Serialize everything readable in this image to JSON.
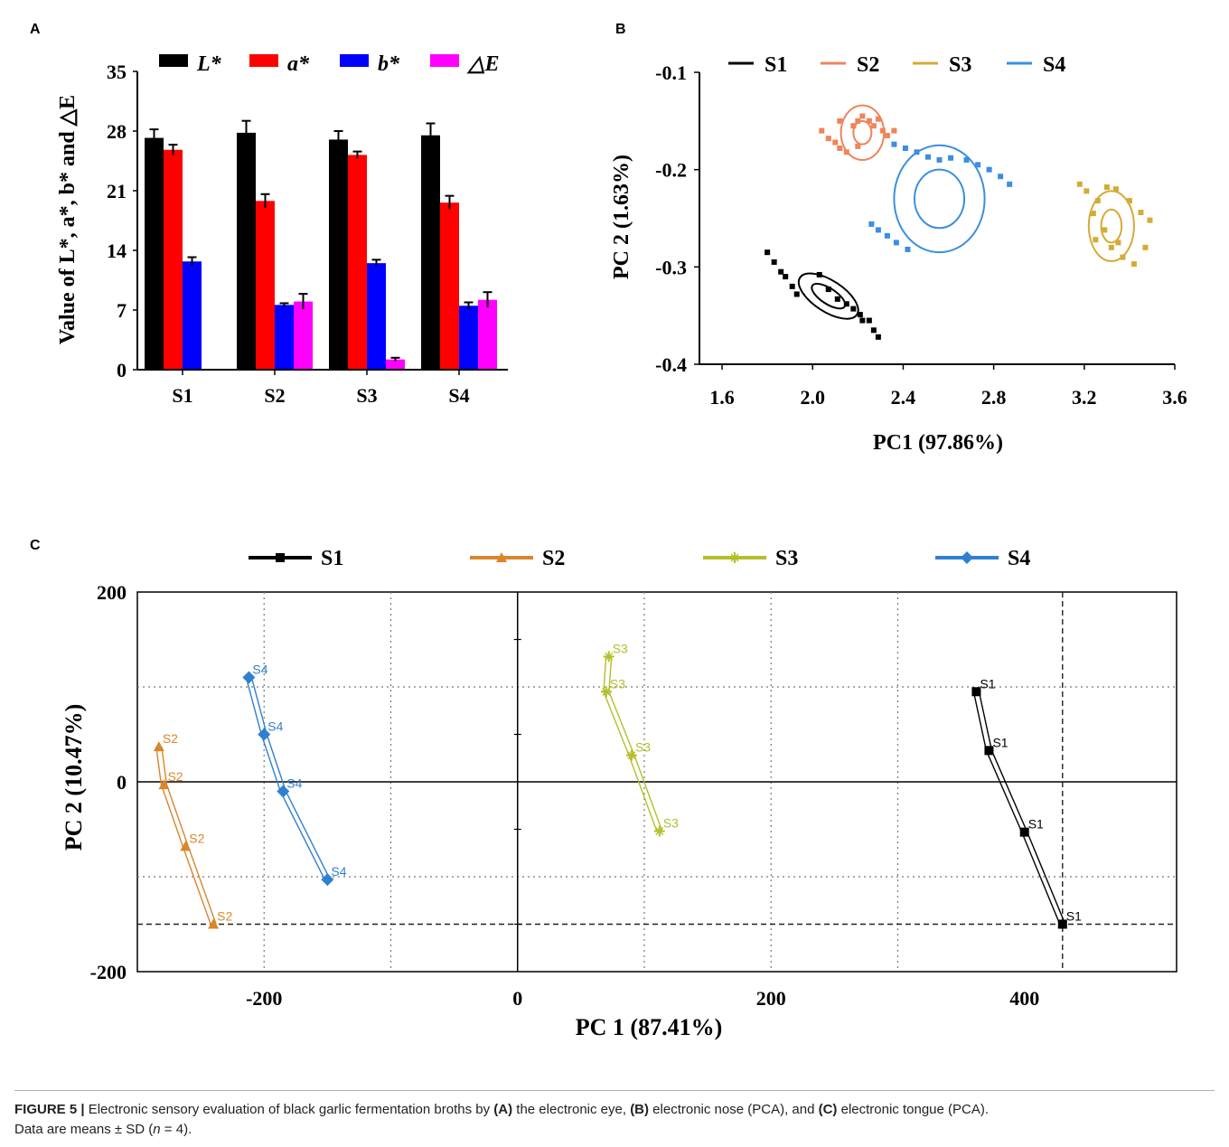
{
  "panel_labels": {
    "a": "A",
    "b": "B",
    "c": "C"
  },
  "caption": {
    "figure": "FIGURE 5 |",
    "t1": " Electronic sensory evaluation of black garlic fermentation broths by ",
    "a": "(A)",
    "t2": " the electronic eye, ",
    "b": "(B)",
    "t3": " electronic nose (PCA), and ",
    "c": "(C)",
    "t4": " electronic tongue (PCA).",
    "t5": "Data are means ± SD (",
    "n": "n",
    "t6": " = 4)."
  },
  "colors": {
    "L": "#000000",
    "a": "#ff0000",
    "b": "#0000ff",
    "dE": "#ff00ff",
    "noseS1": "#000000",
    "noseS2": "#f0845a",
    "noseS3": "#d4ab37",
    "noseS4": "#3b8ee0",
    "tongueS1": "#000000",
    "tongueS2": "#d9862c",
    "tongueS3": "#b4bf2a",
    "tongueS4": "#2f80d0"
  },
  "chart_data": [
    {
      "type": "bar",
      "panel": "A",
      "categories": [
        "S1",
        "S2",
        "S3",
        "S4"
      ],
      "series": [
        {
          "name": "L*",
          "values": [
            27.2,
            27.8,
            27.0,
            27.5
          ],
          "errors": [
            1.0,
            1.4,
            1.0,
            1.4
          ]
        },
        {
          "name": "a*",
          "values": [
            25.8,
            19.8,
            25.2,
            19.6
          ],
          "errors": [
            0.6,
            0.8,
            0.4,
            0.8
          ]
        },
        {
          "name": "b*",
          "values": [
            12.7,
            7.6,
            12.5,
            7.5
          ],
          "errors": [
            0.5,
            0.2,
            0.4,
            0.4
          ]
        },
        {
          "name": "△E",
          "values": [
            0,
            8.0,
            1.2,
            8.2
          ],
          "errors": [
            0,
            0.9,
            0.2,
            0.9
          ]
        }
      ],
      "yticks": [
        "0",
        "7",
        "14",
        "21",
        "28",
        "35"
      ],
      "ylim": [
        0,
        35
      ],
      "ylabel": "Value of L*, a*, b* and △E",
      "legend": "top"
    },
    {
      "type": "scatter",
      "panel": "B",
      "xlabel": "PC1 (97.86%)",
      "ylabel": "PC 2 (1.63%)",
      "xlim": [
        1.5,
        3.6
      ],
      "ylim": [
        -0.4,
        -0.1
      ],
      "xticks": [
        "1.6",
        "2.0",
        "2.4",
        "2.8",
        "3.2",
        "3.6"
      ],
      "yticks": [
        "-0.1",
        "-0.2",
        "-0.3",
        "-0.4"
      ],
      "legend": "top",
      "series": [
        {
          "name": "S1",
          "x": [
            1.8,
            1.83,
            1.86,
            1.88,
            1.91,
            1.93,
            2.03,
            2.07,
            2.11,
            2.15,
            2.18,
            2.21,
            2.22,
            2.25,
            2.27,
            2.29
          ],
          "y": [
            -0.285,
            -0.295,
            -0.305,
            -0.31,
            -0.32,
            -0.328,
            -0.308,
            -0.323,
            -0.333,
            -0.338,
            -0.343,
            -0.349,
            -0.355,
            -0.355,
            -0.365,
            -0.372
          ],
          "ellipses": [
            {
              "cx": 2.07,
              "cy": -0.33,
              "rx": 0.3,
              "ry": 0.016,
              "angle": 33
            },
            {
              "cx": 2.07,
              "cy": -0.33,
              "rx": 0.17,
              "ry": 0.008,
              "angle": 33
            }
          ]
        },
        {
          "name": "S2",
          "x": [
            2.04,
            2.07,
            2.1,
            2.12,
            2.15,
            2.18,
            2.2,
            2.22,
            2.25,
            2.27,
            2.29,
            2.31,
            2.33,
            2.36,
            2.12,
            2.2
          ],
          "y": [
            -0.16,
            -0.168,
            -0.172,
            -0.178,
            -0.182,
            -0.155,
            -0.15,
            -0.145,
            -0.15,
            -0.155,
            -0.148,
            -0.16,
            -0.165,
            -0.16,
            -0.15,
            -0.176
          ],
          "ellipses": [
            {
              "cx": 2.22,
              "cy": -0.162,
              "rx": 0.19,
              "ry": 0.028,
              "angle": 0
            },
            {
              "cx": 2.22,
              "cy": -0.162,
              "rx": 0.08,
              "ry": 0.012,
              "angle": 0
            }
          ]
        },
        {
          "name": "S4",
          "x": [
            2.36,
            2.41,
            2.46,
            2.51,
            2.56,
            2.61,
            2.68,
            2.73,
            2.78,
            2.83,
            2.87,
            2.26,
            2.29,
            2.33,
            2.37,
            2.42
          ],
          "y": [
            -0.174,
            -0.178,
            -0.182,
            -0.187,
            -0.19,
            -0.188,
            -0.19,
            -0.195,
            -0.2,
            -0.207,
            -0.215,
            -0.256,
            -0.262,
            -0.268,
            -0.275,
            -0.282
          ],
          "ellipses": [
            {
              "cx": 2.56,
              "cy": -0.23,
              "rx": 0.4,
              "ry": 0.055,
              "angle": 0
            },
            {
              "cx": 2.56,
              "cy": -0.23,
              "rx": 0.22,
              "ry": 0.03,
              "angle": 0
            }
          ]
        },
        {
          "name": "S3",
          "x": [
            3.18,
            3.21,
            3.26,
            3.3,
            3.34,
            3.4,
            3.45,
            3.49,
            3.25,
            3.32,
            3.37,
            3.42,
            3.24,
            3.29,
            3.35,
            3.47
          ],
          "y": [
            -0.215,
            -0.222,
            -0.232,
            -0.218,
            -0.22,
            -0.232,
            -0.244,
            -0.252,
            -0.272,
            -0.28,
            -0.29,
            -0.297,
            -0.245,
            -0.262,
            -0.275,
            -0.28
          ],
          "ellipses": [
            {
              "cx": 3.32,
              "cy": -0.258,
              "rx": 0.2,
              "ry": 0.036,
              "angle": 0
            },
            {
              "cx": 3.32,
              "cy": -0.258,
              "rx": 0.09,
              "ry": 0.017,
              "angle": 0
            }
          ]
        }
      ]
    },
    {
      "type": "line",
      "panel": "C",
      "xlabel": "PC 1 (87.41%)",
      "ylabel": "PC 2 (10.47%)",
      "xlim": [
        -300,
        520
      ],
      "ylim": [
        -200,
        200
      ],
      "xticks": [
        "-200",
        "0",
        "200",
        "400"
      ],
      "yticks": [
        "200",
        "0",
        "-200"
      ],
      "legend": "top",
      "series": [
        {
          "name": "S1",
          "marker": "square",
          "x": [
            362,
            372,
            400,
            430
          ],
          "y": [
            95,
            33,
            -53,
            -150
          ],
          "labels": [
            "S1",
            "S1",
            "S1",
            "S1"
          ]
        },
        {
          "name": "S2",
          "marker": "triangle",
          "x": [
            -283,
            -279,
            -262,
            -240
          ],
          "y": [
            37,
            -3,
            -68,
            -150
          ],
          "labels": [
            "S2",
            "S2",
            "S2",
            "S2"
          ]
        },
        {
          "name": "S3",
          "marker": "star",
          "x": [
            72,
            70,
            90,
            112
          ],
          "y": [
            132,
            95,
            28,
            -52
          ],
          "labels": [
            "S3",
            "S3",
            "S3",
            "S3"
          ]
        },
        {
          "name": "S4",
          "marker": "diamond",
          "x": [
            -212,
            -200,
            -185,
            -150
          ],
          "y": [
            110,
            50,
            -10,
            -103
          ],
          "labels": [
            "S4",
            "S4",
            "S4",
            "S4"
          ]
        }
      ]
    }
  ]
}
